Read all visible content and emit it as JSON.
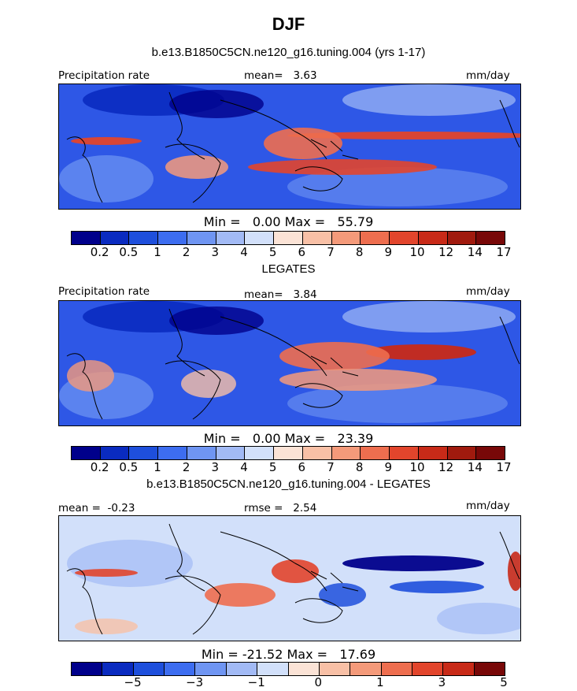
{
  "title": "DJF",
  "panel1": {
    "subtitle": "b.e13.B1850C5CN.ne120_g16.tuning.004 (yrs 1-17)",
    "left_label": "Precipitation rate",
    "center_label": "mean=",
    "center_value": "3.63",
    "right_label": "mm/day",
    "min_label": "Min =",
    "min_value": "0.00",
    "max_label": "Max =",
    "max_value": "55.79"
  },
  "panel2": {
    "subtitle": "LEGATES",
    "left_label": "Precipitation rate",
    "center_label": "mean=",
    "center_value": "3.84",
    "right_label": "mm/day",
    "min_label": "Min =",
    "min_value": "0.00",
    "max_label": "Max =",
    "max_value": "23.39"
  },
  "panel3": {
    "subtitle": "b.e13.B1850C5CN.ne120_g16.tuning.004 - LEGATES",
    "left_label": "mean =",
    "left_value": "-0.23",
    "center_label": "rmse =",
    "center_value": "2.54",
    "right_label": "mm/day",
    "min_label": "Min =",
    "min_value": "-21.52",
    "max_label": "Max =",
    "max_value": "17.69"
  },
  "colorbar_abs": {
    "colors": [
      "#00008b",
      "#0a2bc0",
      "#1e4fdc",
      "#3d6df0",
      "#6f95f2",
      "#a2baf5",
      "#d2e0fa",
      "#fbe3d6",
      "#f8c0a6",
      "#f49a7a",
      "#ee6e4f",
      "#e2452c",
      "#c82a18",
      "#a01a0e",
      "#780808"
    ],
    "ticks": [
      "0.2",
      "0.5",
      "1",
      "2",
      "3",
      "4",
      "5",
      "6",
      "7",
      "8",
      "9",
      "10",
      "12",
      "14",
      "17"
    ]
  },
  "colorbar_diff": {
    "colors": [
      "#00008b",
      "#0a2bc0",
      "#1e4fdc",
      "#3d6df0",
      "#6f95f2",
      "#a2baf5",
      "#d2e0fa",
      "#fbe3d6",
      "#f8c0a6",
      "#f49a7a",
      "#ee6e4f",
      "#e2452c",
      "#c82a18",
      "#780808"
    ],
    "ticks": [
      "-5",
      "-3",
      "-1",
      "0",
      "1",
      "3",
      "5"
    ]
  }
}
